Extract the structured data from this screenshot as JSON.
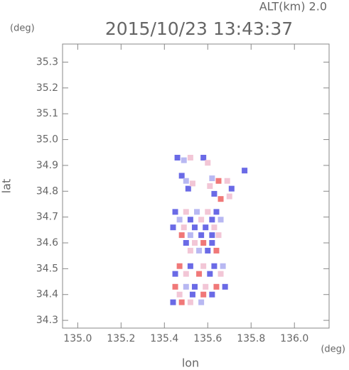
{
  "chart_data": {
    "type": "scatter",
    "title": "2015/10/23 13:43:37",
    "subtitle": "ALT(km)  2.0",
    "y_unit": "(deg)",
    "x_unit": "(deg)",
    "x_label": "lon",
    "y_label": "lat",
    "xlim": [
      134.93,
      136.16
    ],
    "ylim": [
      34.27,
      35.37
    ],
    "xticks": [
      {
        "value": 135,
        "label": "135.0"
      },
      135.2,
      135.4,
      135.6,
      135.8,
      {
        "value": 136,
        "label": "136.0"
      }
    ],
    "yticks": [
      34.3,
      34.4,
      34.5,
      34.6,
      34.7,
      34.8,
      34.9,
      {
        "value": 35,
        "label": "35.0"
      },
      35.1,
      35.2,
      35.3
    ],
    "x": [
      135.46,
      135.49,
      135.52,
      135.58,
      135.6,
      135.48,
      135.5,
      135.51,
      135.53,
      135.62,
      135.65,
      135.69,
      135.71,
      135.7,
      135.66,
      135.63,
      135.61,
      135.77,
      135.45,
      135.5,
      135.55,
      135.6,
      135.64,
      135.47,
      135.52,
      135.57,
      135.62,
      135.66,
      135.44,
      135.49,
      135.54,
      135.59,
      135.63,
      135.48,
      135.52,
      135.57,
      135.62,
      135.65,
      135.5,
      135.54,
      135.58,
      135.62,
      135.52,
      135.56,
      135.6,
      135.64,
      135.47,
      135.52,
      135.58,
      135.63,
      135.67,
      135.45,
      135.5,
      135.56,
      135.61,
      135.66,
      135.45,
      135.5,
      135.54,
      135.59,
      135.64,
      135.68,
      135.47,
      135.53,
      135.58,
      135.62,
      135.44,
      135.48,
      135.52,
      135.57
    ],
    "y": [
      34.93,
      34.92,
      34.93,
      34.93,
      34.91,
      34.86,
      34.84,
      34.81,
      34.83,
      34.85,
      34.84,
      34.84,
      34.81,
      34.78,
      34.77,
      34.79,
      34.82,
      34.88,
      34.72,
      34.72,
      34.72,
      34.72,
      34.72,
      34.69,
      34.69,
      34.69,
      34.69,
      34.69,
      34.66,
      34.66,
      34.66,
      34.66,
      34.66,
      34.63,
      34.63,
      34.63,
      34.63,
      34.63,
      34.6,
      34.6,
      34.6,
      34.6,
      34.57,
      34.57,
      34.57,
      34.57,
      34.51,
      34.51,
      34.51,
      34.51,
      34.51,
      34.48,
      34.48,
      34.48,
      34.48,
      34.48,
      34.43,
      34.43,
      34.43,
      34.43,
      34.43,
      34.43,
      34.4,
      34.4,
      34.4,
      34.4,
      34.37,
      34.37,
      34.37,
      34.37
    ],
    "colors": [
      "#6a6ae6",
      "#b8b8f2",
      "#f2c6d6",
      "#6a6ae6",
      "#f2c6d6",
      "#6a6ae6",
      "#b8b8f2",
      "#6a6ae6",
      "#f2c6d6",
      "#b8b8f2",
      "#f07878",
      "#f2c6d6",
      "#6a6ae6",
      "#f2c6d6",
      "#f07878",
      "#6a6ae6",
      "#f2c6d6",
      "#6a6ae6",
      "#6a6ae6",
      "#f2c6d6",
      "#b8b8f2",
      "#f2c6d6",
      "#6a6ae6",
      "#b8b8f2",
      "#6a6ae6",
      "#f2c6d6",
      "#6a6ae6",
      "#b8b8f2",
      "#6a6ae6",
      "#f2c6d6",
      "#6a6ae6",
      "#6a6ae6",
      "#f2c6d6",
      "#f07878",
      "#b8b8f2",
      "#6a6ae6",
      "#6a6ae6",
      "#f2c6d6",
      "#6a6ae6",
      "#f2c6d6",
      "#f07878",
      "#6a6ae6",
      "#f2c6d6",
      "#b8b8f2",
      "#6a6ae6",
      "#f07878",
      "#f07878",
      "#6a6ae6",
      "#f2c6d6",
      "#6a6ae6",
      "#b8b8f2",
      "#6a6ae6",
      "#f2c6d6",
      "#f07878",
      "#6a6ae6",
      "#f2c6d6",
      "#f07878",
      "#b8b8f2",
      "#6a6ae6",
      "#f2c6d6",
      "#f07878",
      "#6a6ae6",
      "#f2c6d6",
      "#6a6ae6",
      "#f07878",
      "#6a6ae6",
      "#6a6ae6",
      "#f07878",
      "#f2c6d6",
      "#b8b8f2"
    ]
  }
}
